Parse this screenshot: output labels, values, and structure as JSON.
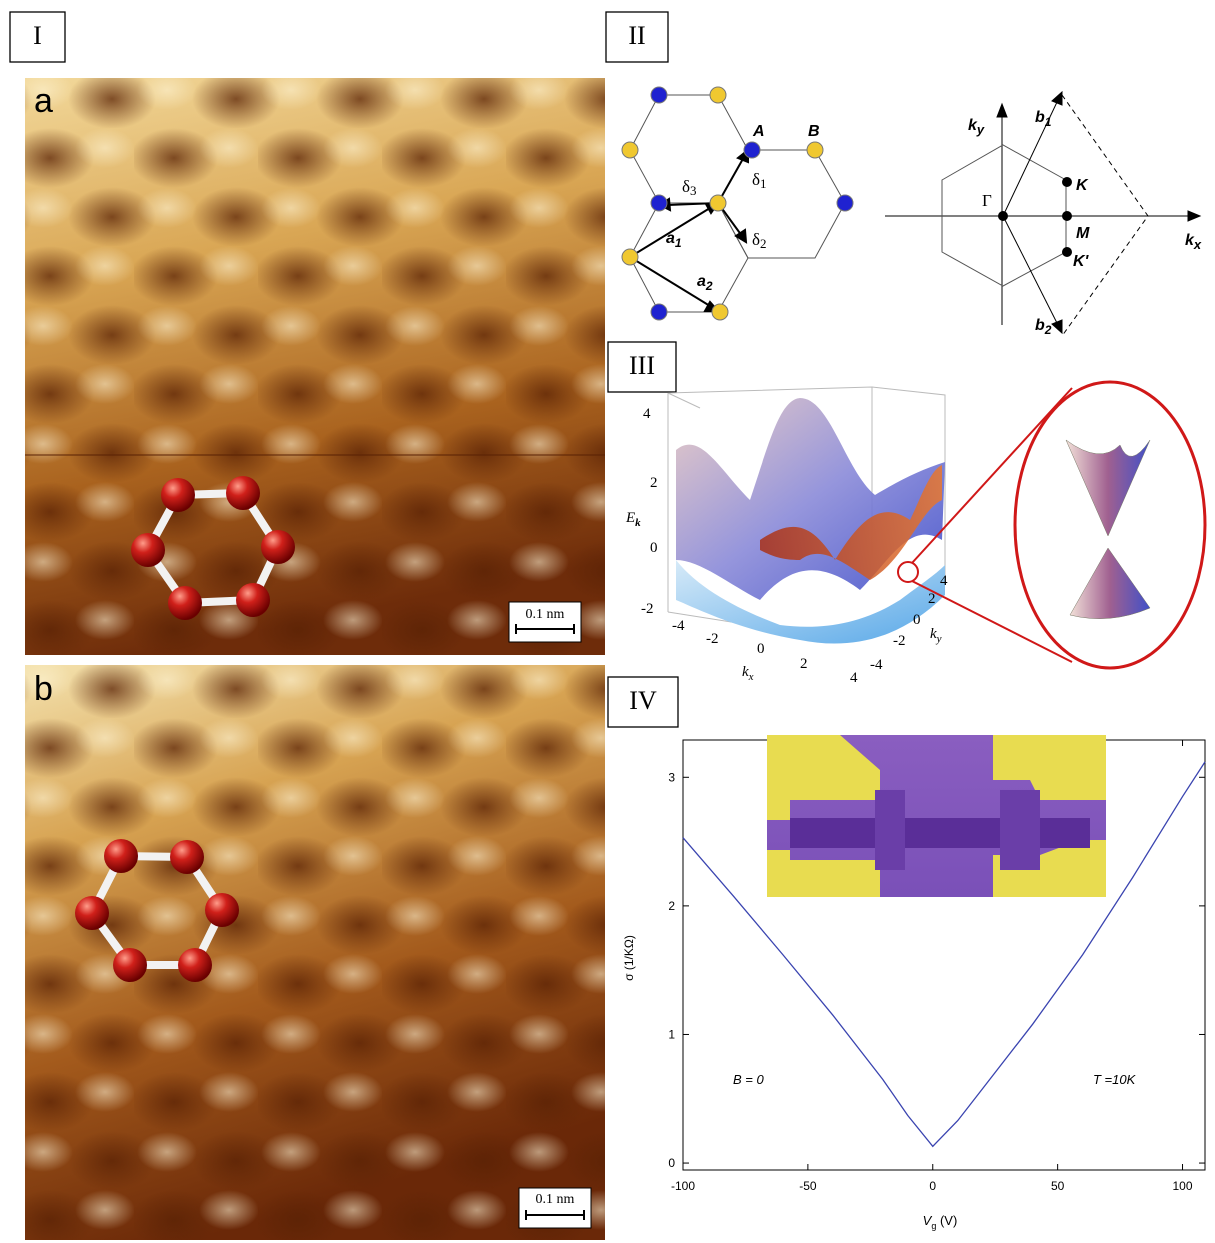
{
  "panels": {
    "I": {
      "label": "I",
      "a": {
        "label": "a",
        "scale_bar": "0.1 nm"
      },
      "b": {
        "label": "b",
        "scale_bar": "0.1 nm"
      }
    },
    "II": {
      "label": "II",
      "A": "A",
      "B": "B",
      "delta1": {
        "text": "δ",
        "sub": "1"
      },
      "delta2": {
        "text": "δ",
        "sub": "2"
      },
      "delta3": {
        "text": "δ",
        "sub": "3"
      },
      "a1": {
        "text": "a",
        "sub": "1"
      },
      "a2": {
        "text": "a",
        "sub": "2"
      },
      "ky": {
        "text": "k",
        "sub": "y"
      },
      "kx": {
        "text": "k",
        "sub": "x"
      },
      "b1": {
        "text": "b",
        "sub": "1"
      },
      "b2": {
        "text": "b",
        "sub": "2"
      },
      "Gamma": "Γ",
      "K": "K",
      "M": "M",
      "Kp": "K'"
    },
    "III": {
      "label": "III",
      "z_label": {
        "text": "E",
        "sub": "k"
      },
      "z_ticks": [
        4,
        2,
        0,
        -2
      ],
      "kx_ticks": [
        -4,
        -2,
        0,
        2,
        4
      ],
      "ky_ticks": [
        4,
        2,
        0,
        -2,
        -4
      ],
      "kx_label": {
        "text": "k",
        "sub": "x"
      },
      "ky_label": {
        "text": "k",
        "sub": "y"
      }
    },
    "IV": {
      "label": "IV"
    }
  },
  "chart_data": {
    "type": "line",
    "x": [
      -100,
      -80,
      -60,
      -40,
      -20,
      -10,
      0,
      10,
      20,
      40,
      60,
      80,
      100,
      109
    ],
    "series": [
      {
        "color": "#3a44b0",
        "values": [
          2.53,
          2.08,
          1.62,
          1.15,
          0.65,
          0.37,
          0.13,
          0.33,
          0.58,
          1.08,
          1.62,
          2.22,
          2.85,
          3.12
        ]
      }
    ],
    "x_label": {
      "text": "V",
      "sub": "g",
      "rest": " (V)"
    },
    "y_label": "σ (1/KΩ)",
    "annotations": [
      "B = 0",
      "T =10K"
    ],
    "xlim": [
      -100,
      109
    ],
    "ylim": [
      -0.054,
      3.29
    ],
    "xticks": [
      -100,
      -50,
      0,
      50,
      100
    ],
    "yticks": [
      0,
      1,
      2,
      3
    ]
  }
}
